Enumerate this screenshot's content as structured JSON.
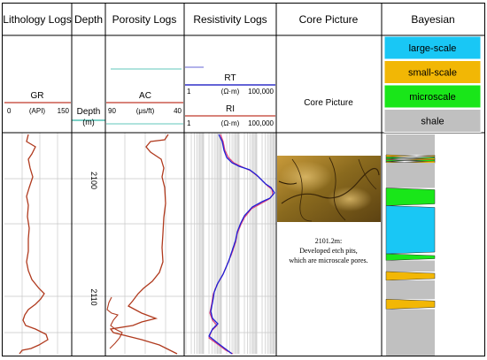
{
  "columns": {
    "lithology": "Lithology Logs",
    "depth": "Depth",
    "porosity": "Porosity Logs",
    "resistivity": "Resistivity Logs",
    "core": "Core Picture",
    "bayesian": "Bayesian"
  },
  "gr": {
    "name": "GR",
    "unit": "(API)",
    "min": "0",
    "max": "150"
  },
  "depth_header": {
    "name": "Depth",
    "unit": "(m)",
    "ticks": [
      "2100",
      "2110"
    ]
  },
  "ac": {
    "name": "AC",
    "unit": "(μs/ft)",
    "left": "90",
    "right": "40"
  },
  "rt": {
    "name": "RT",
    "unit": "(Ω·m)",
    "min": "1",
    "max": "100,000"
  },
  "ri": {
    "name": "RI",
    "unit": "(Ω·m)",
    "min": "1",
    "max": "100,000"
  },
  "core_header": "Core Picture",
  "core_caption": {
    "line1": "2101.2m:",
    "line2": "Developed etch pits,",
    "line3": "which are microscale pores."
  },
  "legend": [
    {
      "label": "large-scale",
      "color": "#19c7f5"
    },
    {
      "label": "small-scale",
      "color": "#f2b705"
    },
    {
      "label": "microscale",
      "color": "#19e619"
    },
    {
      "label": "shale",
      "color": "#c0c0c0"
    }
  ],
  "colors": {
    "log_curve": "#b03a1e",
    "rt_curve": "#1f1fd6",
    "ri_curve": "#e0407a",
    "header_line": "#c0392b",
    "scale_line": "#5a5ad6",
    "ac_line": "#2bb5a5",
    "core_fill": "#8a6a1e"
  },
  "bayesian_column": [
    {
      "class": "shale",
      "from": 0.0,
      "to": 0.092
    },
    {
      "class": "small-scale",
      "from": 0.092,
      "to": 0.102
    },
    {
      "class": "microscale",
      "from": 0.102,
      "to": 0.11
    },
    {
      "class": "small-scale",
      "from": 0.11,
      "to": 0.115
    },
    {
      "class": "microscale",
      "from": 0.115,
      "to": 0.122
    },
    {
      "class": "small-scale",
      "from": 0.122,
      "to": 0.128
    },
    {
      "class": "shale",
      "from": 0.128,
      "to": 0.242
    },
    {
      "class": "microscale",
      "from": 0.242,
      "to": 0.322
    },
    {
      "class": "large-scale",
      "from": 0.322,
      "to": 0.54
    },
    {
      "class": "microscale",
      "from": 0.54,
      "to": 0.57
    },
    {
      "class": "shale",
      "from": 0.57,
      "to": 0.62
    },
    {
      "class": "small-scale",
      "from": 0.62,
      "to": 0.66
    },
    {
      "class": "shale",
      "from": 0.66,
      "to": 0.745
    },
    {
      "class": "small-scale",
      "from": 0.745,
      "to": 0.79
    },
    {
      "class": "shale",
      "from": 0.79,
      "to": 1.0
    }
  ]
}
